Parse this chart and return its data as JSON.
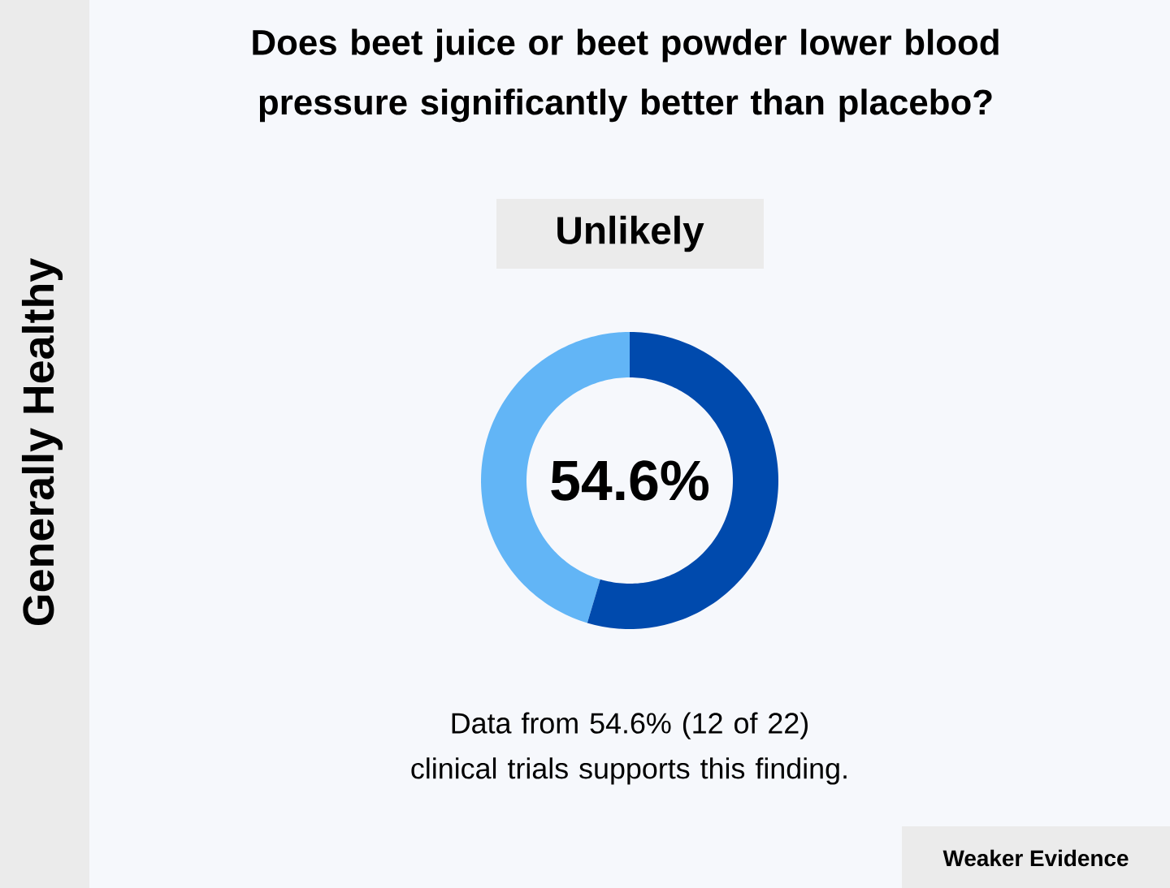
{
  "chart_data": {
    "type": "donut",
    "title": "Does beet juice or beet powder lower blood pressure significantly better than placebo?",
    "subtitle": "Unlikely",
    "categories": [
      null,
      null
    ],
    "values": [
      54.6,
      45.4
    ],
    "colors": [
      "#004aad",
      "#62b5f6"
    ],
    "value_labels": [
      "54.6%",
      null
    ],
    "annotations": [
      "Generally Healthy",
      "Data from 54.6% (12 of 22) clinical trials supports this finding.",
      "Weaker Evidence"
    ]
  }
}
